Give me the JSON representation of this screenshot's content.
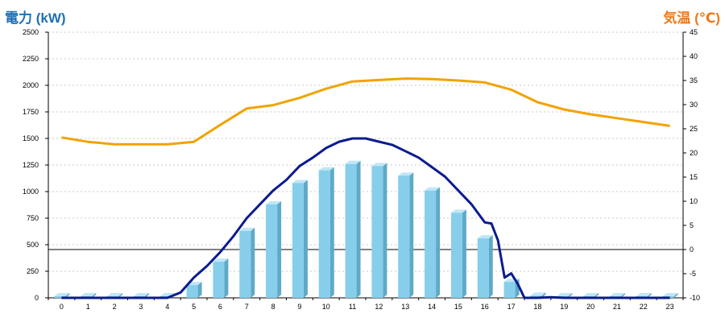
{
  "labels": {
    "left_axis": "電力 (kW)",
    "right_axis": "気温 (℃)"
  },
  "colors": {
    "left_label": "#1f6fb4",
    "right_label": "#ee7a1b",
    "bar_front": "#87ceeb",
    "bar_side": "#5fa9c8",
    "bar_top": "#bfe7f6",
    "power_line": "#0b1b8f",
    "temp_line": "#f2a300",
    "grid": "#c9c9c9",
    "zero_line": "#000000"
  },
  "chart_data": {
    "type": "bar",
    "categories": [
      "0",
      "1",
      "2",
      "3",
      "4",
      "5",
      "6",
      "7",
      "8",
      "9",
      "10",
      "11",
      "12",
      "13",
      "14",
      "15",
      "16",
      "17",
      "18",
      "19",
      "20",
      "21",
      "22",
      "23"
    ],
    "y_left": {
      "min": 0,
      "max": 2500,
      "ticks": [
        0,
        250,
        500,
        750,
        1000,
        1250,
        1500,
        1750,
        2000,
        2250,
        2500
      ]
    },
    "y_right": {
      "min": -10,
      "max": 45,
      "ticks": [
        -10,
        -5,
        0,
        5,
        10,
        15,
        20,
        25,
        30,
        35,
        40,
        45
      ]
    },
    "grid": true,
    "series": [
      {
        "type": "bar",
        "axis": "left",
        "values": [
          15,
          15,
          15,
          15,
          15,
          120,
          340,
          630,
          880,
          1080,
          1200,
          1260,
          1240,
          1150,
          1010,
          800,
          560,
          150,
          20,
          15,
          15,
          15,
          15,
          15
        ]
      },
      {
        "type": "line",
        "axis": "left",
        "x": [
          0,
          1,
          2,
          3,
          4,
          4.5,
          5,
          5.5,
          6,
          6.5,
          7,
          7.5,
          8,
          8.5,
          9,
          9.5,
          10,
          10.5,
          11,
          11.5,
          12,
          12.5,
          13,
          13.5,
          14,
          14.5,
          15,
          15.5,
          16,
          16.25,
          16.5,
          16.75,
          17,
          17.25,
          17.5,
          18,
          18.5,
          19,
          20,
          21,
          22,
          23
        ],
        "values": [
          0,
          0,
          0,
          0,
          0,
          50,
          190,
          300,
          430,
          580,
          750,
          880,
          1010,
          1110,
          1240,
          1320,
          1410,
          1470,
          1500,
          1500,
          1470,
          1440,
          1380,
          1320,
          1230,
          1140,
          1010,
          880,
          710,
          700,
          540,
          190,
          230,
          130,
          0,
          0,
          5,
          0,
          0,
          0,
          0,
          0
        ]
      },
      {
        "type": "line",
        "axis": "right",
        "values": [
          23.2,
          22.3,
          21.8,
          21.8,
          21.8,
          22.3,
          25.8,
          29.2,
          29.9,
          31.4,
          33.3,
          34.8,
          35.1,
          35.4,
          35.3,
          35.0,
          34.6,
          33.1,
          30.5,
          29.0,
          28.0,
          27.2,
          26.4,
          25.6
        ]
      }
    ]
  }
}
